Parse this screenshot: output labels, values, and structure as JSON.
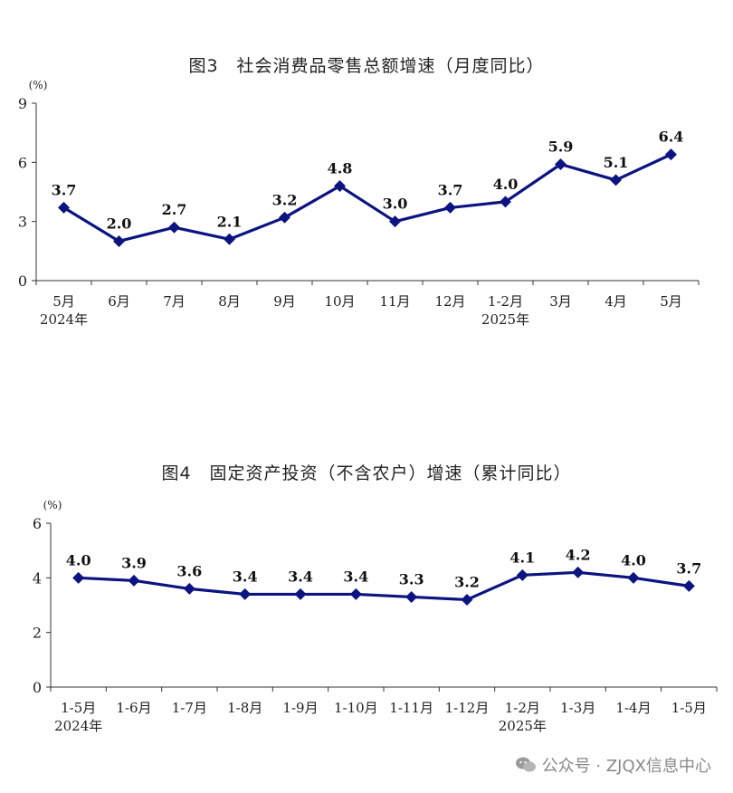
{
  "chart_data": [
    {
      "type": "line",
      "title": "图3　社会消费品零售总额增速（月度同比）",
      "unit": "(%)",
      "categories": [
        "5月",
        "6月",
        "7月",
        "8月",
        "9月",
        "10月",
        "11月",
        "12月",
        "1-2月",
        "3月",
        "4月",
        "5月"
      ],
      "year_labels": [
        {
          "index": 0,
          "label": "2024年"
        },
        {
          "index": 8,
          "label": "2025年"
        }
      ],
      "series": [
        {
          "values": [
            3.7,
            2.0,
            2.7,
            2.1,
            3.2,
            4.8,
            3.0,
            3.7,
            4.0,
            5.9,
            5.1,
            6.4
          ]
        }
      ],
      "data_labels": [
        "3.7",
        "2.0",
        "2.7",
        "2.1",
        "3.2",
        "4.8",
        "3.0",
        "3.7",
        "4.0",
        "5.9",
        "5.1",
        "6.4"
      ],
      "yticks": [
        0,
        3,
        6,
        9
      ],
      "ylim": [
        0,
        9
      ],
      "grid": false,
      "color": "#0b1480"
    },
    {
      "type": "line",
      "title": "图4　固定资产投资（不含农户）增速（累计同比）",
      "unit": "(%)",
      "categories": [
        "1-5月",
        "1-6月",
        "1-7月",
        "1-8月",
        "1-9月",
        "1-10月",
        "1-11月",
        "1-12月",
        "1-2月",
        "1-3月",
        "1-4月",
        "1-5月"
      ],
      "year_labels": [
        {
          "index": 0,
          "label": "2024年"
        },
        {
          "index": 8,
          "label": "2025年"
        }
      ],
      "series": [
        {
          "values": [
            4.0,
            3.9,
            3.6,
            3.4,
            3.4,
            3.4,
            3.3,
            3.2,
            4.1,
            4.2,
            4.0,
            3.7
          ]
        }
      ],
      "data_labels": [
        "4.0",
        "3.9",
        "3.6",
        "3.4",
        "3.4",
        "3.4",
        "3.3",
        "3.2",
        "4.1",
        "4.2",
        "4.0",
        "3.7"
      ],
      "yticks": [
        0,
        2,
        4,
        6
      ],
      "ylim": [
        0,
        6
      ],
      "grid": false,
      "color": "#0b1480"
    }
  ],
  "watermark": {
    "text": "公众号 · ZJQX信息中心",
    "icon": "wechat-icon"
  }
}
